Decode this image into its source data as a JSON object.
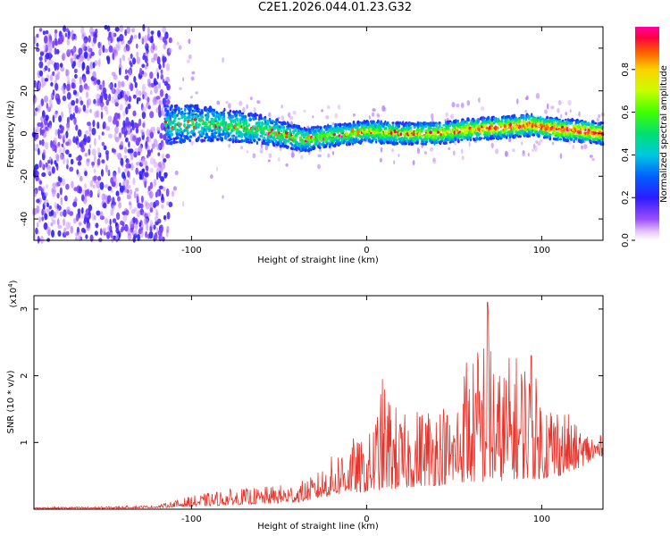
{
  "title": "C2E1.2026.044.01.23.G32",
  "chart_data": [
    {
      "type": "heatmap",
      "name": "spectrogram",
      "xlabel": "Height of straight line (km)",
      "ylabel": "Frequency (Hz)",
      "xlim": [
        -190,
        135
      ],
      "ylim": [
        -50,
        50
      ],
      "xticks": [
        "-100",
        "0",
        "100"
      ],
      "xtick_values": [
        -100,
        0,
        100
      ],
      "yticks": [
        "-40",
        "-20",
        "0",
        "20",
        "40"
      ],
      "ytick_values": [
        -40,
        -20,
        0,
        20,
        40
      ],
      "noise_region_end_km": -115,
      "ridge": {
        "x": [
          -115,
          -100,
          -80,
          -60,
          -45,
          -35,
          -20,
          -10,
          0,
          20,
          40,
          60,
          80,
          95,
          110,
          125,
          135
        ],
        "frequency_hz": [
          4,
          5,
          4,
          2,
          -1,
          -3,
          -1,
          0,
          1,
          0,
          0,
          2,
          3,
          4,
          2,
          1,
          0
        ]
      },
      "colorbar": {
        "label": "Normalized spectral amplitude",
        "range": [
          0,
          1
        ],
        "ticks": [
          "0.0",
          "0.2",
          "0.4",
          "0.6",
          "0.8"
        ],
        "tick_values": [
          0.0,
          0.2,
          0.4,
          0.6,
          0.8
        ]
      }
    },
    {
      "type": "line",
      "name": "snr",
      "xlabel": "Height of straight line (km)",
      "ylabel": "SNR (10 * v/v)",
      "scale_label": "(x10",
      "scale_exponent": "4",
      "scale_suffix": ")",
      "xlim": [
        -190,
        135
      ],
      "ylim": [
        0,
        3.2
      ],
      "xticks": [
        "-100",
        "0",
        "100"
      ],
      "xtick_values": [
        -100,
        0,
        100
      ],
      "yticks": [
        "1",
        "2",
        "3"
      ],
      "ytick_values": [
        1,
        2,
        3
      ],
      "color": "#e8332a",
      "envelope": {
        "x": [
          -190,
          -150,
          -120,
          -100,
          -80,
          -60,
          -40,
          -30,
          -20,
          -10,
          0,
          10,
          20,
          30,
          40,
          50,
          55,
          60,
          70,
          75,
          80,
          90,
          100,
          110,
          120,
          135
        ],
        "peak": [
          0.03,
          0.04,
          0.06,
          0.2,
          0.3,
          0.33,
          0.4,
          0.5,
          0.8,
          1.1,
          1.0,
          1.95,
          1.4,
          1.55,
          1.7,
          1.5,
          2.2,
          2.2,
          3.1,
          2.1,
          2.3,
          2.4,
          1.8,
          1.65,
          1.25,
          1.1
        ],
        "base": [
          0.01,
          0.01,
          0.02,
          0.04,
          0.06,
          0.08,
          0.1,
          0.15,
          0.2,
          0.25,
          0.25,
          0.3,
          0.3,
          0.35,
          0.35,
          0.4,
          0.4,
          0.4,
          0.4,
          0.4,
          0.45,
          0.45,
          0.45,
          0.5,
          0.6,
          0.8
        ]
      },
      "spikes": [
        {
          "x": 9,
          "y": 1.95
        },
        {
          "x": 57,
          "y": 2.2
        },
        {
          "x": 69,
          "y": 3.1
        },
        {
          "x": 94,
          "y": 2.3
        }
      ]
    }
  ]
}
